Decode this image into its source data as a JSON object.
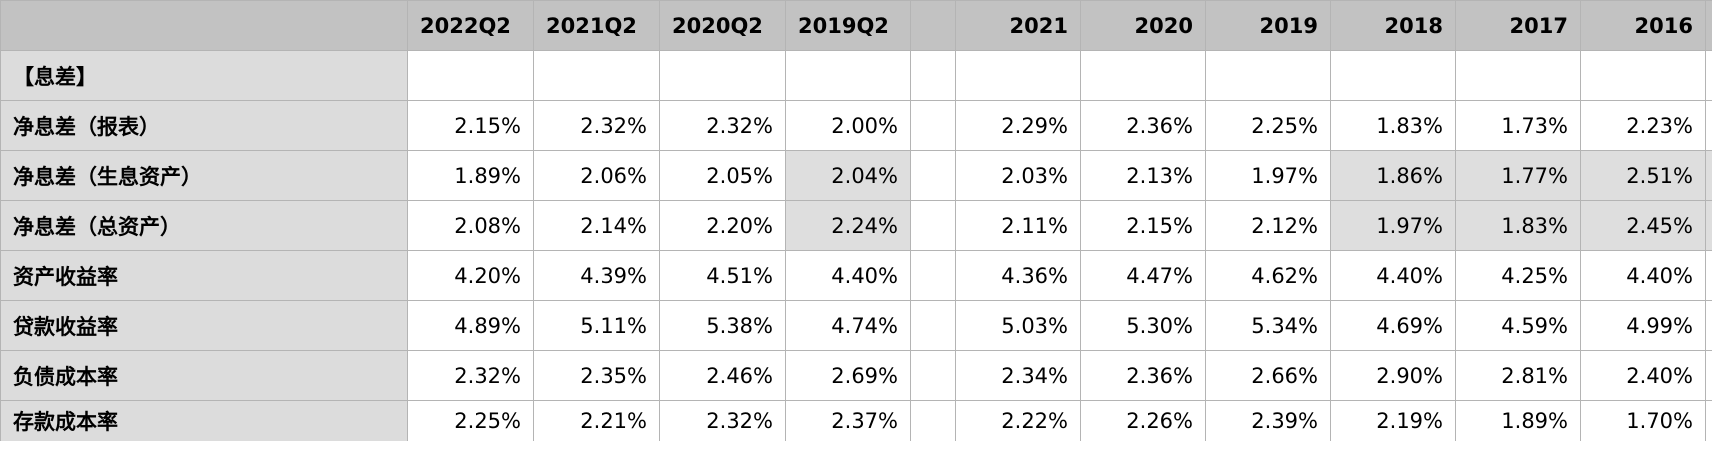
{
  "columns": [
    "2022Q2",
    "2021Q2",
    "2020Q2",
    "2019Q2",
    "2021",
    "2020",
    "2019",
    "2018",
    "2017",
    "2016"
  ],
  "section_label": "【息差】",
  "rows": [
    {
      "label": "净息差（报表）",
      "values": [
        "2.15%",
        "2.32%",
        "2.32%",
        "2.00%",
        "2.29%",
        "2.36%",
        "2.25%",
        "1.83%",
        "1.73%",
        "2.23%"
      ],
      "highlight": [
        false,
        false,
        false,
        false,
        false,
        false,
        false,
        false,
        false,
        false
      ]
    },
    {
      "label": "净息差（生息资产）",
      "values": [
        "1.89%",
        "2.06%",
        "2.05%",
        "2.04%",
        "2.03%",
        "2.13%",
        "1.97%",
        "1.86%",
        "1.77%",
        "2.51%"
      ],
      "highlight": [
        false,
        false,
        false,
        true,
        false,
        false,
        false,
        true,
        true,
        true
      ]
    },
    {
      "label": "净息差（总资产）",
      "values": [
        "2.08%",
        "2.14%",
        "2.20%",
        "2.24%",
        "2.11%",
        "2.15%",
        "2.12%",
        "1.97%",
        "1.83%",
        "2.45%"
      ],
      "highlight": [
        false,
        false,
        false,
        true,
        false,
        false,
        false,
        true,
        true,
        true
      ]
    },
    {
      "label": "资产收益率",
      "values": [
        "4.20%",
        "4.39%",
        "4.51%",
        "4.40%",
        "4.36%",
        "4.47%",
        "4.62%",
        "4.40%",
        "4.25%",
        "4.40%"
      ],
      "highlight": [
        false,
        false,
        false,
        false,
        false,
        false,
        false,
        false,
        false,
        false
      ]
    },
    {
      "label": "贷款收益率",
      "values": [
        "4.89%",
        "5.11%",
        "5.38%",
        "4.74%",
        "5.03%",
        "5.30%",
        "5.34%",
        "4.69%",
        "4.59%",
        "4.99%"
      ],
      "highlight": [
        false,
        false,
        false,
        false,
        false,
        false,
        false,
        false,
        false,
        false
      ]
    },
    {
      "label": "负债成本率",
      "values": [
        "2.32%",
        "2.35%",
        "2.46%",
        "2.69%",
        "2.34%",
        "2.36%",
        "2.66%",
        "2.90%",
        "2.81%",
        "2.40%"
      ],
      "highlight": [
        false,
        false,
        false,
        false,
        false,
        false,
        false,
        false,
        false,
        false
      ]
    },
    {
      "label": "存款成本率",
      "values": [
        "2.25%",
        "2.21%",
        "2.32%",
        "2.37%",
        "2.22%",
        "2.26%",
        "2.39%",
        "2.19%",
        "1.89%",
        "1.70%"
      ],
      "highlight": [
        false,
        false,
        false,
        false,
        false,
        false,
        false,
        false,
        false,
        false
      ]
    }
  ],
  "colors": {
    "header_bg": "#c2c2c2",
    "row_label_bg": "#dcdcdc",
    "highlight_bg": "#dedede",
    "grid_line": "#b4b4b4"
  }
}
